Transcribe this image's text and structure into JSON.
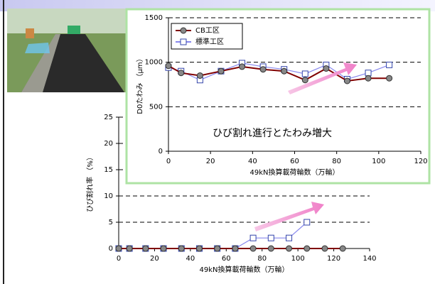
{
  "chart_data": [
    {
      "type": "line",
      "x_label": "49kN換算載荷輪数（万輪）",
      "y_label": "ひび割れ率 （%）",
      "xlim": [
        0,
        140
      ],
      "xticks": [
        0,
        20,
        40,
        60,
        80,
        100,
        120,
        140
      ],
      "ylim": [
        0,
        25
      ],
      "yticks": [
        0,
        5,
        10,
        15,
        20,
        25
      ],
      "grid": true,
      "series": [
        {
          "name": "CB工区",
          "color": "#800000",
          "marker": "circle",
          "x": [
            0,
            6,
            15,
            25,
            35,
            45,
            55,
            65,
            75,
            85,
            95,
            105,
            115,
            125
          ],
          "values": [
            0,
            0,
            0,
            0,
            0,
            0,
            0,
            0,
            0,
            0,
            0,
            0,
            0,
            0
          ]
        },
        {
          "name": "標準工区",
          "color": "#8888ee",
          "marker": "square",
          "x": [
            0,
            6,
            15,
            25,
            35,
            45,
            55,
            65,
            75,
            85,
            95,
            105
          ],
          "values": [
            0,
            0,
            0,
            0,
            0,
            0,
            0,
            0,
            2,
            2,
            2,
            5
          ]
        }
      ]
    },
    {
      "type": "line",
      "x_label": "49kN換算載荷輪数（万輪）",
      "y_label": "D0たわみ （μm）",
      "annotation": "ひび割れ進行とたわみ増大",
      "xlim": [
        0,
        120
      ],
      "xticks": [
        0,
        20,
        40,
        60,
        80,
        100,
        120
      ],
      "ylim": [
        0,
        1500
      ],
      "yticks": [
        0,
        500,
        1000,
        1500
      ],
      "grid": true,
      "legend": "upper-left",
      "series": [
        {
          "name": "CB工区",
          "color": "#800000",
          "marker": "circle",
          "x": [
            0,
            6,
            15,
            25,
            35,
            45,
            55,
            65,
            75,
            85,
            95,
            105
          ],
          "values": [
            960,
            880,
            850,
            900,
            950,
            920,
            900,
            800,
            930,
            790,
            820,
            820
          ]
        },
        {
          "name": "標準工区",
          "color": "#8888ee",
          "marker": "square",
          "x": [
            0,
            6,
            15,
            25,
            35,
            45,
            55,
            65,
            75,
            85,
            95,
            105
          ],
          "values": [
            940,
            900,
            800,
            900,
            990,
            950,
            920,
            870,
            970,
            810,
            880,
            970
          ]
        }
      ]
    }
  ]
}
